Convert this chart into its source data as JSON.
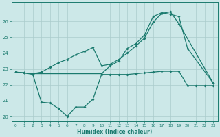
{
  "xlabel": "Humidex (Indice chaleur)",
  "bg_color": "#cce8e8",
  "line_color": "#1a7a6e",
  "grid_color": "#aacccc",
  "xlim": [
    -0.5,
    23.5
  ],
  "ylim": [
    19.7,
    27.2
  ],
  "yticks": [
    20,
    21,
    22,
    23,
    24,
    25,
    26
  ],
  "xticks": [
    0,
    1,
    2,
    3,
    4,
    5,
    6,
    7,
    8,
    9,
    10,
    11,
    12,
    13,
    14,
    15,
    16,
    17,
    18,
    19,
    20,
    21,
    22,
    23
  ],
  "line1_x": [
    0,
    1,
    2,
    10,
    11,
    12,
    13,
    14,
    15,
    16,
    17,
    18,
    19,
    20,
    23
  ],
  "line1_y": [
    22.8,
    22.75,
    22.7,
    22.7,
    23.2,
    23.5,
    24.3,
    24.6,
    25.15,
    26.3,
    26.55,
    26.45,
    26.3,
    24.3,
    22.1
  ],
  "line2_x": [
    0,
    1,
    2,
    3,
    4,
    5,
    6,
    7,
    8,
    9,
    10,
    11,
    12,
    13,
    14,
    15,
    16,
    17,
    18,
    19,
    23
  ],
  "line2_y": [
    22.8,
    22.75,
    22.7,
    22.8,
    23.1,
    23.4,
    23.6,
    23.9,
    24.1,
    24.35,
    23.2,
    23.3,
    23.6,
    24.0,
    24.45,
    24.95,
    25.95,
    26.5,
    26.6,
    25.85,
    22.1
  ],
  "line3_x": [
    0,
    1,
    2,
    3,
    4,
    5,
    6,
    7,
    8,
    9,
    10,
    11,
    12,
    13,
    14,
    15,
    16,
    17,
    18,
    19,
    20,
    21,
    22,
    23
  ],
  "line3_y": [
    22.8,
    22.75,
    22.65,
    20.9,
    20.85,
    20.5,
    20.0,
    20.6,
    20.6,
    21.1,
    22.65,
    22.65,
    22.65,
    22.65,
    22.7,
    22.75,
    22.8,
    22.85,
    22.85,
    22.85,
    21.95,
    21.95,
    21.95,
    21.95
  ]
}
